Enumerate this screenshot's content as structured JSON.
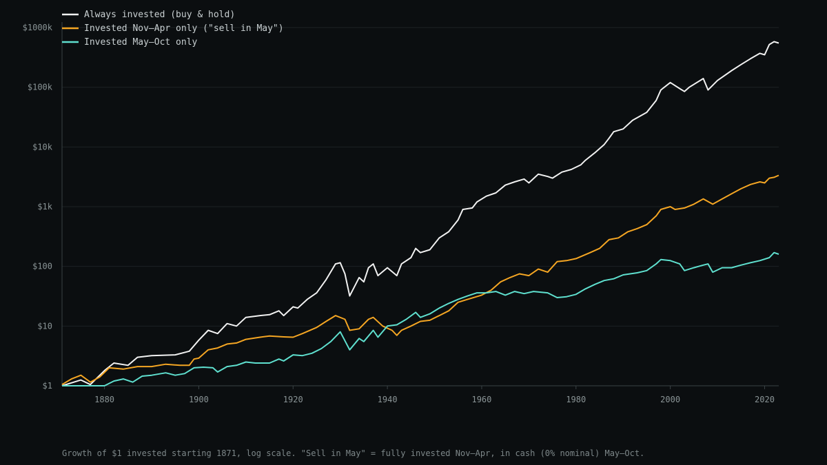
{
  "caption": "Growth of $1 invested starting 1871, log scale. \"Sell in May\" = fully invested Nov–Apr, in cash (0% nominal) May–Oct.",
  "colors": {
    "background": "#0b0e10",
    "grid": "#1c2225",
    "axis": "#3a4245",
    "tick_text": "#8a9496",
    "legend_text": "#c9d0d2"
  },
  "chart_data": {
    "type": "line",
    "title": "",
    "xlabel": "",
    "ylabel": "",
    "y_scale": "log",
    "xlim": [
      1871,
      2023
    ],
    "ylim": [
      1,
      1000000
    ],
    "grid": true,
    "legend_position": "top-left",
    "x_ticks": [
      1880,
      1900,
      1920,
      1940,
      1960,
      1980,
      2000,
      2020
    ],
    "y_ticks": [
      {
        "value": 1,
        "label": "$1"
      },
      {
        "value": 10,
        "label": "$10"
      },
      {
        "value": 100,
        "label": "$100"
      },
      {
        "value": 1000,
        "label": "$1k"
      },
      {
        "value": 10000,
        "label": "$10k"
      },
      {
        "value": 100000,
        "label": "$100k"
      },
      {
        "value": 1000000,
        "label": "$1000k"
      }
    ],
    "series": [
      {
        "name": "Always invested (buy & hold)",
        "color": "#f2f2f2",
        "points": [
          [
            1871,
            1.0
          ],
          [
            1875,
            1.25
          ],
          [
            1877,
            1.05
          ],
          [
            1880,
            1.8
          ],
          [
            1882,
            2.4
          ],
          [
            1885,
            2.2
          ],
          [
            1887,
            3.0
          ],
          [
            1890,
            3.2
          ],
          [
            1895,
            3.3
          ],
          [
            1898,
            3.8
          ],
          [
            1900,
            5.8
          ],
          [
            1902,
            8.5
          ],
          [
            1904,
            7.5
          ],
          [
            1906,
            11.0
          ],
          [
            1908,
            10.0
          ],
          [
            1910,
            14.0
          ],
          [
            1913,
            15.0
          ],
          [
            1915,
            15.5
          ],
          [
            1917,
            18.0
          ],
          [
            1918,
            15.0
          ],
          [
            1920,
            21.0
          ],
          [
            1921,
            20.0
          ],
          [
            1923,
            28.0
          ],
          [
            1925,
            36.0
          ],
          [
            1927,
            60.0
          ],
          [
            1929,
            110.0
          ],
          [
            1930,
            115.0
          ],
          [
            1931,
            75.0
          ],
          [
            1932,
            32.0
          ],
          [
            1934,
            65.0
          ],
          [
            1935,
            55.0
          ],
          [
            1936,
            95.0
          ],
          [
            1937,
            110.0
          ],
          [
            1938,
            70.0
          ],
          [
            1940,
            95.0
          ],
          [
            1942,
            70.0
          ],
          [
            1943,
            110.0
          ],
          [
            1945,
            140.0
          ],
          [
            1946,
            200.0
          ],
          [
            1947,
            170.0
          ],
          [
            1949,
            190.0
          ],
          [
            1951,
            300.0
          ],
          [
            1953,
            380.0
          ],
          [
            1955,
            600.0
          ],
          [
            1956,
            900.0
          ],
          [
            1958,
            950.0
          ],
          [
            1959,
            1200.0
          ],
          [
            1961,
            1500.0
          ],
          [
            1963,
            1700.0
          ],
          [
            1965,
            2300.0
          ],
          [
            1967,
            2600.0
          ],
          [
            1969,
            2900.0
          ],
          [
            1970,
            2500.0
          ],
          [
            1972,
            3500.0
          ],
          [
            1974,
            3200.0
          ],
          [
            1975,
            3000.0
          ],
          [
            1977,
            3800.0
          ],
          [
            1979,
            4200.0
          ],
          [
            1981,
            5000.0
          ],
          [
            1982,
            6000.0
          ],
          [
            1984,
            8000.0
          ],
          [
            1986,
            11000.0
          ],
          [
            1987,
            14000.0
          ],
          [
            1988,
            18000.0
          ],
          [
            1990,
            20000.0
          ],
          [
            1992,
            28000.0
          ],
          [
            1995,
            38000.0
          ],
          [
            1997,
            60000.0
          ],
          [
            1998,
            90000.0
          ],
          [
            2000,
            120000.0
          ],
          [
            2002,
            95000.0
          ],
          [
            2003,
            85000.0
          ],
          [
            2004,
            100000.0
          ],
          [
            2007,
            140000.0
          ],
          [
            2008,
            90000.0
          ],
          [
            2010,
            130000.0
          ],
          [
            2013,
            190000.0
          ],
          [
            2015,
            240000.0
          ],
          [
            2017,
            300000.0
          ],
          [
            2019,
            370000.0
          ],
          [
            2020,
            350000.0
          ],
          [
            2021,
            520000.0
          ],
          [
            2022,
            580000.0
          ],
          [
            2023,
            550000.0
          ]
        ]
      },
      {
        "name": "Invested Nov–Apr only (\"sell in May\")",
        "color": "#f5a623",
        "points": [
          [
            1871,
            1.05
          ],
          [
            1873,
            1.3
          ],
          [
            1875,
            1.5
          ],
          [
            1877,
            1.15
          ],
          [
            1879,
            1.4
          ],
          [
            1881,
            2.0
          ],
          [
            1884,
            1.9
          ],
          [
            1887,
            2.1
          ],
          [
            1890,
            2.1
          ],
          [
            1893,
            2.3
          ],
          [
            1896,
            2.2
          ],
          [
            1898,
            2.2
          ],
          [
            1899,
            2.8
          ],
          [
            1900,
            2.9
          ],
          [
            1902,
            4.0
          ],
          [
            1904,
            4.3
          ],
          [
            1906,
            5.0
          ],
          [
            1908,
            5.2
          ],
          [
            1910,
            6.0
          ],
          [
            1913,
            6.5
          ],
          [
            1915,
            6.8
          ],
          [
            1918,
            6.6
          ],
          [
            1920,
            6.5
          ],
          [
            1922,
            7.5
          ],
          [
            1925,
            9.5
          ],
          [
            1927,
            12.0
          ],
          [
            1929,
            15.0
          ],
          [
            1931,
            13.0
          ],
          [
            1932,
            8.5
          ],
          [
            1934,
            9.0
          ],
          [
            1936,
            13.0
          ],
          [
            1937,
            14.0
          ],
          [
            1939,
            10.0
          ],
          [
            1941,
            8.5
          ],
          [
            1942,
            7.0
          ],
          [
            1943,
            8.5
          ],
          [
            1945,
            10.0
          ],
          [
            1947,
            12.0
          ],
          [
            1949,
            12.5
          ],
          [
            1951,
            15.0
          ],
          [
            1953,
            18.0
          ],
          [
            1955,
            25.0
          ],
          [
            1957,
            28.0
          ],
          [
            1960,
            33.0
          ],
          [
            1962,
            40.0
          ],
          [
            1964,
            55.0
          ],
          [
            1966,
            65.0
          ],
          [
            1968,
            75.0
          ],
          [
            1970,
            70.0
          ],
          [
            1972,
            90.0
          ],
          [
            1974,
            80.0
          ],
          [
            1976,
            120.0
          ],
          [
            1978,
            125.0
          ],
          [
            1980,
            135.0
          ],
          [
            1983,
            170.0
          ],
          [
            1985,
            200.0
          ],
          [
            1987,
            280.0
          ],
          [
            1989,
            300.0
          ],
          [
            1991,
            380.0
          ],
          [
            1993,
            430.0
          ],
          [
            1995,
            500.0
          ],
          [
            1997,
            700.0
          ],
          [
            1998,
            900.0
          ],
          [
            2000,
            1000.0
          ],
          [
            2001,
            900.0
          ],
          [
            2003,
            950.0
          ],
          [
            2005,
            1100.0
          ],
          [
            2007,
            1350.0
          ],
          [
            2009,
            1100.0
          ],
          [
            2011,
            1350.0
          ],
          [
            2013,
            1650.0
          ],
          [
            2015,
            2000.0
          ],
          [
            2017,
            2350.0
          ],
          [
            2019,
            2600.0
          ],
          [
            2020,
            2500.0
          ],
          [
            2021,
            3000.0
          ],
          [
            2022,
            3100.0
          ],
          [
            2023,
            3350.0
          ]
        ]
      },
      {
        "name": "Invested May–Oct only",
        "color": "#5fe0cf",
        "points": [
          [
            1871,
            1.0
          ],
          [
            1880,
            1.0
          ],
          [
            1882,
            1.2
          ],
          [
            1884,
            1.3
          ],
          [
            1886,
            1.15
          ],
          [
            1888,
            1.45
          ],
          [
            1890,
            1.5
          ],
          [
            1893,
            1.65
          ],
          [
            1895,
            1.5
          ],
          [
            1897,
            1.6
          ],
          [
            1899,
            2.0
          ],
          [
            1901,
            2.05
          ],
          [
            1903,
            2.0
          ],
          [
            1904,
            1.7
          ],
          [
            1906,
            2.1
          ],
          [
            1908,
            2.2
          ],
          [
            1910,
            2.5
          ],
          [
            1912,
            2.4
          ],
          [
            1915,
            2.4
          ],
          [
            1917,
            2.8
          ],
          [
            1918,
            2.6
          ],
          [
            1920,
            3.3
          ],
          [
            1922,
            3.2
          ],
          [
            1924,
            3.5
          ],
          [
            1926,
            4.2
          ],
          [
            1928,
            5.5
          ],
          [
            1930,
            8.0
          ],
          [
            1932,
            4.0
          ],
          [
            1934,
            6.2
          ],
          [
            1935,
            5.5
          ],
          [
            1937,
            8.5
          ],
          [
            1938,
            6.5
          ],
          [
            1940,
            10.0
          ],
          [
            1942,
            10.5
          ],
          [
            1944,
            13.0
          ],
          [
            1946,
            17.0
          ],
          [
            1947,
            14.0
          ],
          [
            1949,
            16.0
          ],
          [
            1951,
            20.0
          ],
          [
            1953,
            24.0
          ],
          [
            1955,
            28.0
          ],
          [
            1957,
            32.0
          ],
          [
            1959,
            36.0
          ],
          [
            1961,
            36.0
          ],
          [
            1963,
            38.0
          ],
          [
            1965,
            33.0
          ],
          [
            1967,
            38.0
          ],
          [
            1969,
            35.0
          ],
          [
            1971,
            38.0
          ],
          [
            1974,
            36.0
          ],
          [
            1976,
            30.0
          ],
          [
            1978,
            31.0
          ],
          [
            1980,
            34.0
          ],
          [
            1982,
            42.0
          ],
          [
            1984,
            50.0
          ],
          [
            1986,
            58.0
          ],
          [
            1988,
            62.0
          ],
          [
            1990,
            72.0
          ],
          [
            1993,
            78.0
          ],
          [
            1995,
            85.0
          ],
          [
            1997,
            110.0
          ],
          [
            1998,
            130.0
          ],
          [
            2000,
            125.0
          ],
          [
            2002,
            110.0
          ],
          [
            2003,
            85.0
          ],
          [
            2005,
            95.0
          ],
          [
            2007,
            105.0
          ],
          [
            2008,
            110.0
          ],
          [
            2009,
            80.0
          ],
          [
            2011,
            95.0
          ],
          [
            2013,
            95.0
          ],
          [
            2015,
            105.0
          ],
          [
            2017,
            115.0
          ],
          [
            2019,
            125.0
          ],
          [
            2021,
            140.0
          ],
          [
            2022,
            170.0
          ],
          [
            2023,
            160.0
          ]
        ]
      }
    ]
  }
}
